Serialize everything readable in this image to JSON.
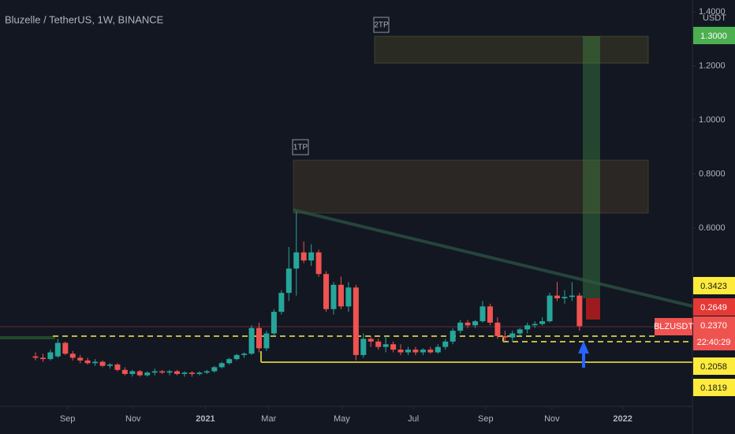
{
  "chart_data": {
    "type": "candlestick",
    "title": "Bluzelle / TetherUS, 1W, BINANCE",
    "currency": "USDT",
    "series": [
      {
        "name": "BLZUSDT",
        "up_color": "#26a69a",
        "down_color": "#ef5350",
        "open": [
          0.125,
          0.12,
          0.115,
          0.125,
          0.175,
          0.135,
          0.12,
          0.11,
          0.1,
          0.105,
          0.09,
          0.095,
          0.075,
          0.06,
          0.07,
          0.055,
          0.065,
          0.07,
          0.065,
          0.07,
          0.06,
          0.065,
          0.06,
          0.065,
          0.07,
          0.085,
          0.1,
          0.115,
          0.13,
          0.135,
          0.23,
          0.155,
          0.21,
          0.29,
          0.36,
          0.45,
          0.51,
          0.48,
          0.51,
          0.43,
          0.3,
          0.39,
          0.31,
          0.38,
          0.13,
          0.19,
          0.18,
          0.16,
          0.17,
          0.15,
          0.14,
          0.15,
          0.14,
          0.15,
          0.14,
          0.16,
          0.18,
          0.22,
          0.25,
          0.24,
          0.255,
          0.31,
          0.25,
          0.2,
          0.195,
          0.21,
          0.225,
          0.24,
          0.245,
          0.255,
          0.35,
          0.34,
          0.345,
          0.35
        ],
        "high": [
          0.14,
          0.135,
          0.15,
          0.19,
          0.18,
          0.145,
          0.13,
          0.12,
          0.115,
          0.11,
          0.1,
          0.1,
          0.085,
          0.075,
          0.075,
          0.07,
          0.08,
          0.075,
          0.075,
          0.075,
          0.07,
          0.07,
          0.07,
          0.075,
          0.09,
          0.105,
          0.12,
          0.135,
          0.14,
          0.24,
          0.25,
          0.22,
          0.3,
          0.37,
          0.53,
          0.66,
          0.55,
          0.54,
          0.52,
          0.44,
          0.4,
          0.42,
          0.4,
          0.39,
          0.21,
          0.2,
          0.19,
          0.2,
          0.18,
          0.17,
          0.16,
          0.16,
          0.155,
          0.16,
          0.17,
          0.19,
          0.23,
          0.26,
          0.26,
          0.26,
          0.33,
          0.32,
          0.27,
          0.22,
          0.22,
          0.23,
          0.25,
          0.255,
          0.27,
          0.36,
          0.4,
          0.37,
          0.4,
          0.36
        ],
        "low": [
          0.11,
          0.105,
          0.11,
          0.12,
          0.13,
          0.11,
          0.1,
          0.095,
          0.09,
          0.085,
          0.08,
          0.07,
          0.055,
          0.05,
          0.05,
          0.05,
          0.055,
          0.06,
          0.055,
          0.055,
          0.05,
          0.05,
          0.055,
          0.06,
          0.065,
          0.08,
          0.095,
          0.11,
          0.12,
          0.13,
          0.14,
          0.145,
          0.2,
          0.28,
          0.33,
          0.35,
          0.47,
          0.46,
          0.42,
          0.29,
          0.28,
          0.3,
          0.29,
          0.11,
          0.12,
          0.16,
          0.15,
          0.14,
          0.14,
          0.13,
          0.13,
          0.13,
          0.13,
          0.135,
          0.135,
          0.15,
          0.17,
          0.21,
          0.23,
          0.23,
          0.25,
          0.24,
          0.19,
          0.18,
          0.18,
          0.2,
          0.21,
          0.23,
          0.24,
          0.25,
          0.33,
          0.32,
          0.33,
          0.22
        ],
        "close": [
          0.12,
          0.115,
          0.14,
          0.175,
          0.135,
          0.12,
          0.11,
          0.1,
          0.105,
          0.09,
          0.095,
          0.075,
          0.06,
          0.07,
          0.055,
          0.065,
          0.07,
          0.065,
          0.07,
          0.06,
          0.065,
          0.06,
          0.065,
          0.07,
          0.085,
          0.1,
          0.115,
          0.13,
          0.135,
          0.23,
          0.155,
          0.21,
          0.29,
          0.36,
          0.45,
          0.51,
          0.48,
          0.51,
          0.43,
          0.3,
          0.39,
          0.31,
          0.38,
          0.13,
          0.19,
          0.18,
          0.16,
          0.17,
          0.15,
          0.14,
          0.15,
          0.14,
          0.15,
          0.14,
          0.16,
          0.18,
          0.22,
          0.25,
          0.24,
          0.255,
          0.31,
          0.25,
          0.2,
          0.195,
          0.21,
          0.225,
          0.24,
          0.245,
          0.255,
          0.35,
          0.34,
          0.345,
          0.35,
          0.237
        ]
      }
    ],
    "ylim": [
      -0.06,
      1.444
    ],
    "yticks": [
      {
        "value": 0.6,
        "label": "0.6000"
      },
      {
        "value": 0.8,
        "label": "0.8000"
      },
      {
        "value": 1.0,
        "label": "1.0000"
      },
      {
        "value": 1.2,
        "label": "1.2000"
      },
      {
        "value": 1.4,
        "label": "1.4000"
      }
    ],
    "xticks": [
      {
        "value": 4.3,
        "label": "Sep"
      },
      {
        "value": 13.1,
        "label": "Nov"
      },
      {
        "value": 22.8,
        "label": "2021"
      },
      {
        "value": 31.3,
        "label": "Mar"
      },
      {
        "value": 41.1,
        "label": "May"
      },
      {
        "value": 50.7,
        "label": "Jul"
      },
      {
        "value": 60.4,
        "label": "Sep"
      },
      {
        "value": 69.3,
        "label": "Nov"
      },
      {
        "value": 78.8,
        "label": "2022"
      }
    ],
    "price_labels": [
      {
        "value": 1.3,
        "label": "1.3000",
        "color": "#4caf50"
      },
      {
        "value": 0.3423,
        "color": "#ffeb3b"
      },
      {
        "value": 0.2649,
        "color": "#e53935"
      },
      {
        "value": 0.237,
        "label": "0.2370",
        "color": "#ef5350"
      },
      {
        "value": 0.2058,
        "color": "#ffeb3b"
      },
      {
        "value": 0.1819,
        "color": "#ffeb3b"
      }
    ],
    "countdown": "22:40:29",
    "annotations": [
      "1TP",
      "2TP"
    ]
  }
}
